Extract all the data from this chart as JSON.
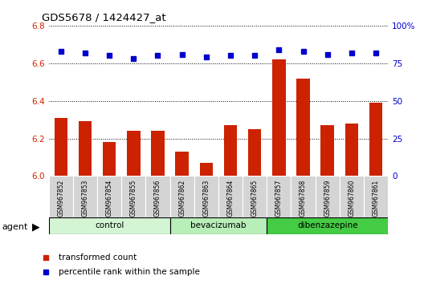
{
  "title": "GDS5678 / 1424427_at",
  "samples": [
    "GSM967852",
    "GSM967853",
    "GSM967854",
    "GSM967855",
    "GSM967856",
    "GSM967862",
    "GSM967863",
    "GSM967864",
    "GSM967865",
    "GSM967857",
    "GSM967858",
    "GSM967859",
    "GSM967860",
    "GSM967861"
  ],
  "transformed_counts": [
    6.31,
    6.29,
    6.18,
    6.24,
    6.24,
    6.13,
    6.07,
    6.27,
    6.25,
    6.62,
    6.52,
    6.27,
    6.28,
    6.39
  ],
  "percentile_ranks": [
    83,
    82,
    80,
    78,
    80,
    81,
    79,
    80,
    80,
    84,
    83,
    81,
    82,
    82
  ],
  "groups": [
    {
      "label": "control",
      "start": 0,
      "end": 5,
      "color": "#d4f5d4"
    },
    {
      "label": "bevacizumab",
      "start": 5,
      "end": 9,
      "color": "#b8eeb8"
    },
    {
      "label": "dibenzazepine",
      "start": 9,
      "end": 14,
      "color": "#44cc44"
    }
  ],
  "bar_color": "#cc2200",
  "dot_color": "#0000cc",
  "ylim_left": [
    6.0,
    6.8
  ],
  "ylim_right": [
    0,
    100
  ],
  "yticks_left": [
    6.0,
    6.2,
    6.4,
    6.6,
    6.8
  ],
  "yticks_right": [
    0,
    25,
    50,
    75,
    100
  ],
  "grid_color": "#000000",
  "background_color": "#ffffff",
  "legend_bar_label": "transformed count",
  "legend_dot_label": "percentile rank within the sample",
  "agent_label": "agent"
}
